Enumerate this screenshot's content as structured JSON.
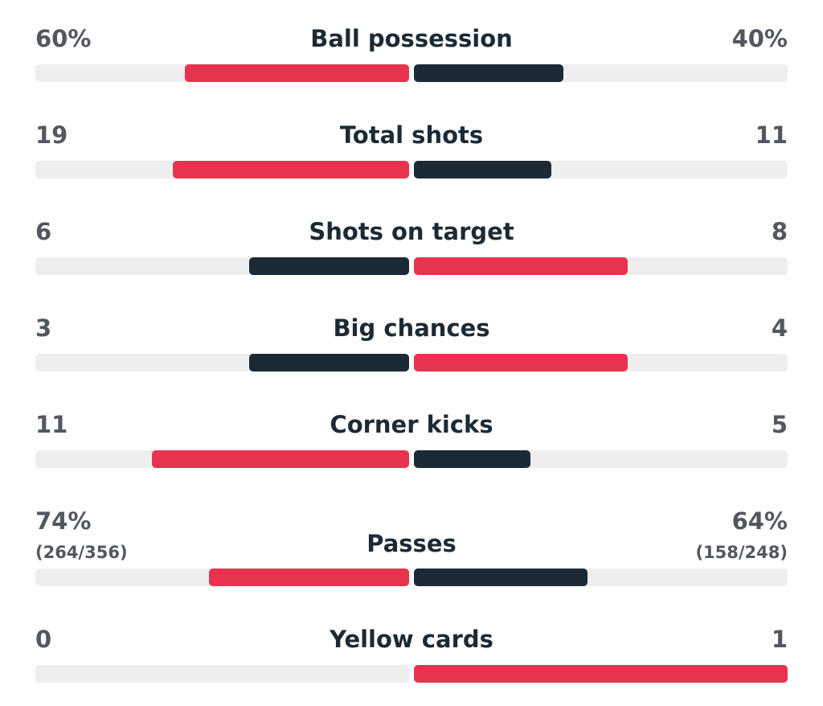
{
  "colors": {
    "leader": "#e8334f",
    "trailer": "#1c2a35",
    "track": "#eeeeee",
    "label": "#1c2a35",
    "value": "#52585f"
  },
  "stats": [
    {
      "label": "Ball possession",
      "home": "60%",
      "away": "40%",
      "home_fill": 0.6,
      "away_fill": 0.4,
      "home_color": "#e8334f",
      "away_color": "#1c2a35"
    },
    {
      "label": "Total shots",
      "home": "19",
      "away": "11",
      "home_fill": 0.633,
      "away_fill": 0.367,
      "home_color": "#e8334f",
      "away_color": "#1c2a35"
    },
    {
      "label": "Shots on target",
      "home": "6",
      "away": "8",
      "home_fill": 0.429,
      "away_fill": 0.571,
      "home_color": "#1c2a35",
      "away_color": "#e8334f"
    },
    {
      "label": "Big chances",
      "home": "3",
      "away": "4",
      "home_fill": 0.429,
      "away_fill": 0.571,
      "home_color": "#1c2a35",
      "away_color": "#e8334f"
    },
    {
      "label": "Corner kicks",
      "home": "11",
      "away": "5",
      "home_fill": 0.6875,
      "away_fill": 0.3125,
      "home_color": "#e8334f",
      "away_color": "#1c2a35"
    },
    {
      "label": "Passes",
      "home": "74%",
      "away": "64%",
      "home_sub": "(264/356)",
      "away_sub": "(158/248)",
      "home_fill": 0.536,
      "away_fill": 0.464,
      "home_color": "#e8334f",
      "away_color": "#1c2a35"
    },
    {
      "label": "Yellow cards",
      "home": "0",
      "away": "1",
      "home_fill": 0.0,
      "away_fill": 1.0,
      "home_color": "#1c2a35",
      "away_color": "#e8334f"
    }
  ]
}
